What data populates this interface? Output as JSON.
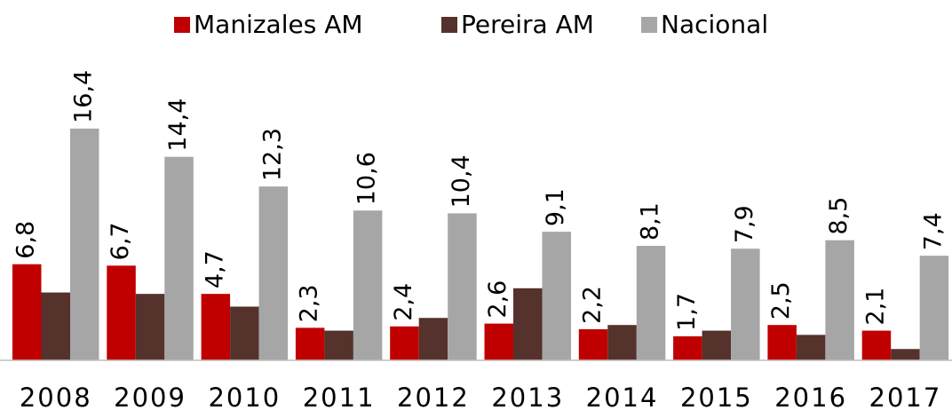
{
  "chart_data": {
    "type": "bar",
    "categories": [
      "2008",
      "2009",
      "2010",
      "2011",
      "2012",
      "2013",
      "2014",
      "2015",
      "2016",
      "2017"
    ],
    "series": [
      {
        "name": "Manizales AM",
        "color": "#c00000",
        "values": [
          6.8,
          6.7,
          4.7,
          2.3,
          2.4,
          2.6,
          2.2,
          1.7,
          2.5,
          2.1
        ],
        "value_labels": [
          "6,8",
          "6,7",
          "4,7",
          "2,3",
          "2,4",
          "2,6",
          "2,2",
          "1,7",
          "2,5",
          "2,1"
        ]
      },
      {
        "name": "Pereira AM",
        "color": "#55322c",
        "values": [
          4.8,
          4.7,
          3.8,
          2.1,
          3.0,
          5.1,
          2.5,
          2.1,
          1.8,
          0.8
        ]
      },
      {
        "name": "Nacional",
        "color": "#a6a6a6",
        "values": [
          16.4,
          14.4,
          12.3,
          10.6,
          10.4,
          9.1,
          8.1,
          7.9,
          8.5,
          7.4
        ],
        "value_labels": [
          "16,4",
          "14,4",
          "12,3",
          "10,6",
          "10,4",
          "9,1",
          "8,1",
          "7,9",
          "8,5",
          "7,4"
        ]
      }
    ],
    "ylim": [
      0,
      25.5
    ],
    "legend": "top"
  }
}
